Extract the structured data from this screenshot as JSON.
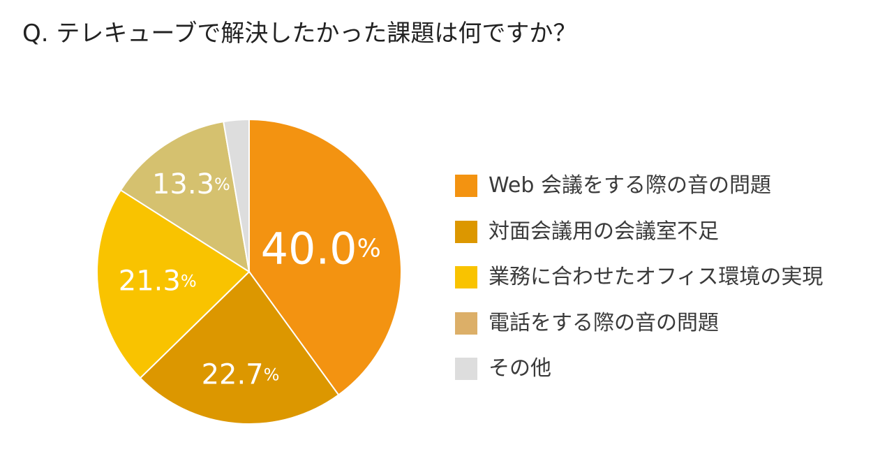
{
  "chart_data": {
    "type": "pie",
    "title": "Q. テレキューブで解決したかった課題は何ですか？",
    "legend_position": "right",
    "slices": [
      {
        "name": "Web 会議をする際の音の問題",
        "value": 40.0,
        "label": "40.0",
        "color": "#f39311"
      },
      {
        "name": "対面会議用の会議室不足",
        "value": 22.7,
        "label": "22.7",
        "color": "#dc9700"
      },
      {
        "name": "業務に合わせたオフィス環境の実現",
        "value": 21.3,
        "label": "21.3",
        "color": "#f9c300"
      },
      {
        "name": "電話をする際の音の問題",
        "value": 13.3,
        "label": "13.3",
        "color": "#d5c16f"
      },
      {
        "name": "その他",
        "value": 2.7,
        "label": "",
        "color": "#dddddd"
      }
    ],
    "legend": [
      {
        "label": "Web 会議をする際の音の問題",
        "color": "#f39311"
      },
      {
        "label": "対面会議用の会議室不足",
        "color": "#dc9700"
      },
      {
        "label": "業務に合わせたオフィス環境の実現",
        "color": "#f9c300"
      },
      {
        "label": "電話をする際の音の問題",
        "color": "#dcaf68"
      },
      {
        "label": "その他",
        "color": "#dddddd"
      }
    ],
    "percent_sign": "%"
  }
}
